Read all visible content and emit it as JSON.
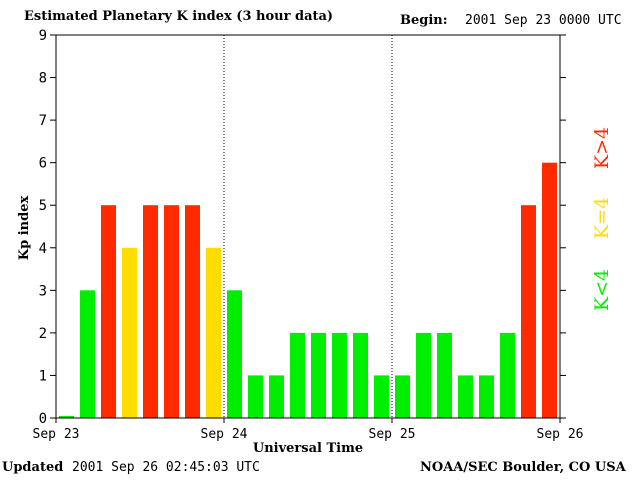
{
  "header": {
    "title": "Estimated Planetary K index (3 hour data)",
    "begin_label": "Begin:",
    "begin_value": "2001 Sep 23 0000 UTC"
  },
  "footer": {
    "updated_label": "Updated",
    "updated_value": "2001 Sep 26 02:45:03 UTC",
    "credit": "NOAA/SEC Boulder, CO USA"
  },
  "colors": {
    "low": "#00ee00",
    "equal": "#ffdd00",
    "high": "#ff2a00"
  },
  "legend": {
    "high": "K>4",
    "equal": "K=4",
    "low": "K<4"
  },
  "chart_data": {
    "type": "bar",
    "title": "Estimated Planetary K index (3 hour data)",
    "xlabel": "Universal Time",
    "ylabel": "Kp index",
    "ylim": [
      0,
      9
    ],
    "yticks": [
      0,
      1,
      2,
      3,
      4,
      5,
      6,
      7,
      8,
      9
    ],
    "xtick_labels": [
      "Sep 23",
      "Sep 24",
      "Sep 25",
      "Sep 26"
    ],
    "day_separators": [
      "Sep 24",
      "Sep 25"
    ],
    "values": [
      0.05,
      3,
      5,
      4,
      5,
      5,
      5,
      4,
      3,
      1,
      1,
      2,
      2,
      2,
      2,
      1,
      1,
      2,
      2,
      1,
      1,
      2,
      5,
      6
    ],
    "bar_levels": [
      "low",
      "low",
      "high",
      "equal",
      "high",
      "high",
      "high",
      "equal",
      "low",
      "low",
      "low",
      "low",
      "low",
      "low",
      "low",
      "low",
      "low",
      "low",
      "low",
      "low",
      "low",
      "low",
      "high",
      "high"
    ],
    "legend_placement": "right"
  }
}
